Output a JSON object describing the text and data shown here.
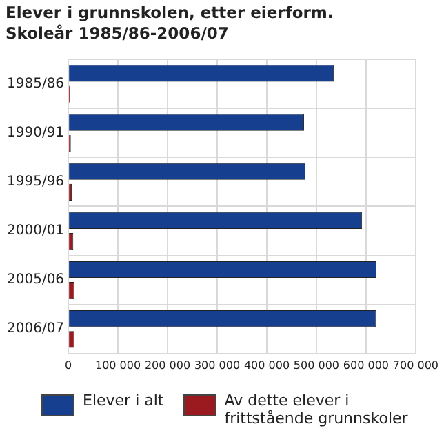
{
  "chart_data": {
    "type": "bar",
    "orientation": "horizontal",
    "title": "Elever i grunnskolen, etter eierform. Skoleår 1985/86-2006/07",
    "categories": [
      "1985/86",
      "1990/91",
      "1995/96",
      "2000/01",
      "2005/06",
      "2006/07"
    ],
    "series": [
      {
        "name": "Elever i alt",
        "color": "#173f8f",
        "values": [
          535000,
          475000,
          478000,
          592000,
          621000,
          620000
        ]
      },
      {
        "name": "Av dette elever i frittstående grunnskoler",
        "color": "#9b1a1f",
        "values": [
          4000,
          5000,
          7000,
          10000,
          12000,
          12000
        ]
      }
    ],
    "xlim": [
      0,
      700000
    ],
    "xticks": [
      {
        "value": 0,
        "label": "0"
      },
      {
        "value": 100000,
        "label": "100 000"
      },
      {
        "value": 200000,
        "label": "200 000"
      },
      {
        "value": 300000,
        "label": "300 000"
      },
      {
        "value": 400000,
        "label": "400 000"
      },
      {
        "value": 500000,
        "label": "500 000"
      },
      {
        "value": 600000,
        "label": "600 000"
      },
      {
        "value": 700000,
        "label": "700 000"
      }
    ],
    "grid": true,
    "legend": "bottom"
  }
}
